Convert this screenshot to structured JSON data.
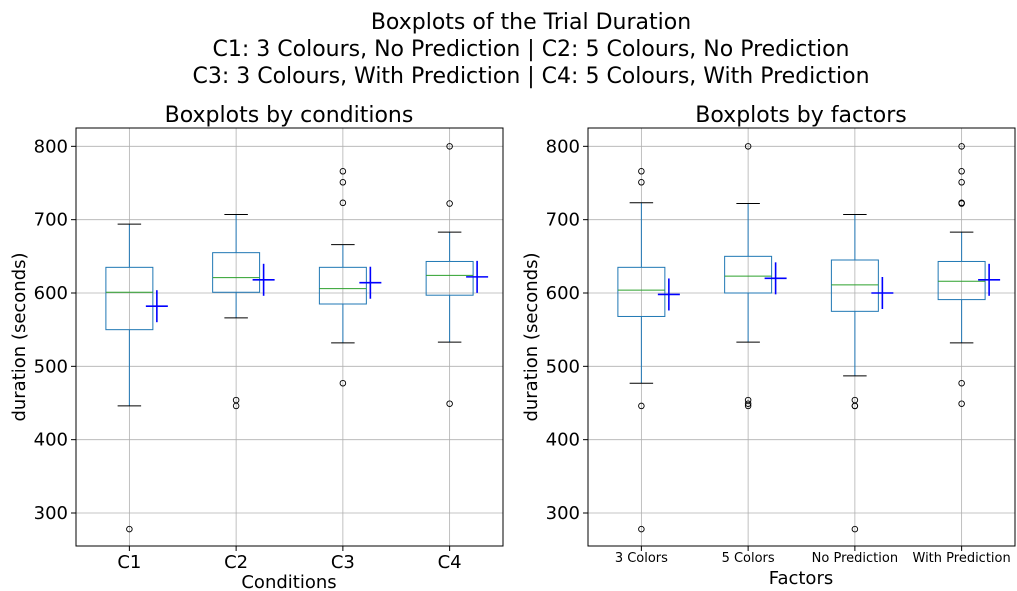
{
  "figure": {
    "suptitle_lines": [
      "Boxplots of the Trial Duration",
      "C1: 3 Colours, No Prediction | C2: 5 Colours, No Prediction",
      "C3: 3 Colours, With Prediction | C4: 5 Colours, With Prediction"
    ]
  },
  "colors": {
    "box": "#1f77b4",
    "median": "#2ca02c",
    "whisker_cap": "#000000",
    "mean_marker": "#0000ff",
    "grid": "#b0b0b0",
    "outlier": "#000000"
  },
  "chart_data": [
    {
      "type": "box",
      "title": "Boxplots by conditions",
      "xlabel": "Conditions",
      "ylabel": "duration (seconds)",
      "ylim": [
        255,
        825
      ],
      "yticks": [
        300,
        400,
        500,
        600,
        700,
        800
      ],
      "grid": true,
      "categories": [
        "C1",
        "C2",
        "C3",
        "C4"
      ],
      "boxes": [
        {
          "category": "C1",
          "whisker_low": 446,
          "q1": 550,
          "median": 601,
          "q3": 635,
          "whisker_high": 694,
          "mean": 582,
          "outliers": [
            278
          ]
        },
        {
          "category": "C2",
          "whisker_low": 566,
          "q1": 601,
          "median": 621,
          "q3": 655,
          "whisker_high": 707,
          "mean": 618,
          "outliers": [
            454,
            446
          ]
        },
        {
          "category": "C3",
          "whisker_low": 532,
          "q1": 585,
          "median": 606,
          "q3": 635,
          "whisker_high": 666,
          "mean": 614,
          "outliers": [
            766,
            751,
            723,
            477
          ]
        },
        {
          "category": "C4",
          "whisker_low": 533,
          "q1": 597,
          "median": 624,
          "q3": 643,
          "whisker_high": 683,
          "mean": 622,
          "outliers": [
            800,
            722,
            449
          ]
        }
      ]
    },
    {
      "type": "box",
      "title": "Boxplots by factors",
      "xlabel": "Factors",
      "ylabel": "duration (seconds)",
      "ylim": [
        255,
        825
      ],
      "yticks": [
        300,
        400,
        500,
        600,
        700,
        800
      ],
      "grid": true,
      "categories": [
        "3 Colors",
        "5 Colors",
        "No Prediction",
        "With Prediction"
      ],
      "boxes": [
        {
          "category": "3 Colors",
          "whisker_low": 477,
          "q1": 568,
          "median": 604,
          "q3": 635,
          "whisker_high": 723,
          "mean": 598,
          "outliers": [
            766,
            751,
            446,
            278
          ]
        },
        {
          "category": "5 Colors",
          "whisker_low": 533,
          "q1": 600,
          "median": 623,
          "q3": 650,
          "whisker_high": 722,
          "mean": 620,
          "outliers": [
            800,
            454,
            449,
            446
          ]
        },
        {
          "category": "No Prediction",
          "whisker_low": 487,
          "q1": 575,
          "median": 611,
          "q3": 645,
          "whisker_high": 707,
          "mean": 600,
          "outliers": [
            454,
            446,
            446,
            278
          ]
        },
        {
          "category": "With Prediction",
          "whisker_low": 532,
          "q1": 591,
          "median": 616,
          "q3": 643,
          "whisker_high": 683,
          "mean": 618,
          "outliers": [
            800,
            766,
            751,
            723,
            722,
            477,
            449
          ]
        }
      ]
    }
  ]
}
